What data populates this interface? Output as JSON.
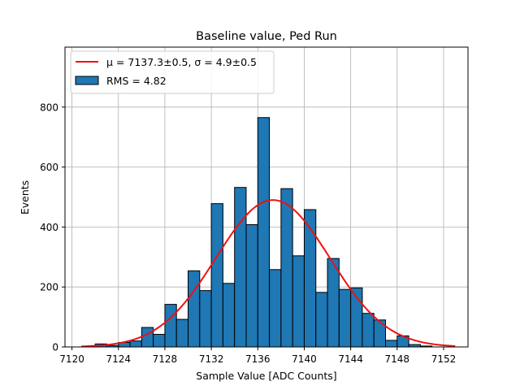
{
  "chart_data": {
    "type": "bar",
    "title": "Baseline value, Ped Run",
    "xlabel": "Sample Value [ADC Counts]",
    "ylabel": "Events",
    "xlim": [
      7119.4,
      7154.1
    ],
    "ylim": [
      0,
      1000
    ],
    "grid": true,
    "legend_position": "upper-left",
    "x_ticks": [
      7120,
      7124,
      7128,
      7132,
      7136,
      7140,
      7144,
      7148,
      7152
    ],
    "y_ticks": [
      0,
      200,
      400,
      600,
      800
    ],
    "bin_width": 1,
    "bin_edges_start": 7121,
    "hist_values": [
      2,
      10,
      5,
      15,
      20,
      65,
      42,
      142,
      92,
      254,
      188,
      478,
      212,
      532,
      408,
      765,
      258,
      528,
      304,
      458,
      182,
      295,
      192,
      197,
      112,
      90,
      22,
      37,
      8,
      3
    ],
    "fit": {
      "mu": 7137.3,
      "sigma": 4.9,
      "amplitude": 490,
      "x_range": [
        7120.8,
        7153.0
      ]
    },
    "legend": {
      "fit_label": "μ = 7137.3±0.5, σ = 4.9±0.5",
      "hist_label": "RMS = 4.82"
    },
    "colors": {
      "bar_fill": "#1f77b4",
      "bar_edge": "#000000",
      "fit_line": "#ee1111",
      "grid": "#b0b0b0"
    }
  }
}
